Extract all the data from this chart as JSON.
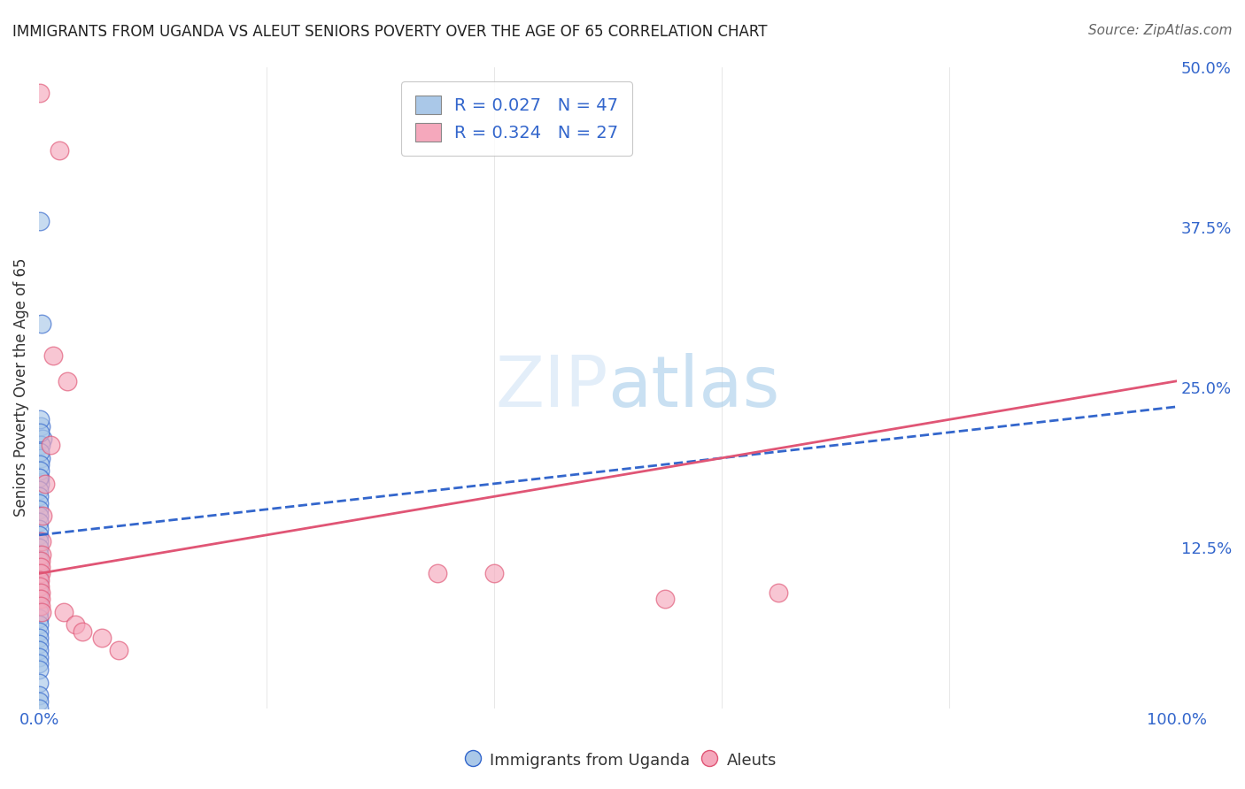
{
  "title": "IMMIGRANTS FROM UGANDA VS ALEUT SENIORS POVERTY OVER THE AGE OF 65 CORRELATION CHART",
  "source": "Source: ZipAtlas.com",
  "xlabel_blue": "Immigrants from Uganda",
  "xlabel_pink": "Aleuts",
  "ylabel": "Seniors Poverty Over the Age of 65",
  "xmin": 0.0,
  "xmax": 100.0,
  "ymin": 0.0,
  "ymax": 50.0,
  "yticks": [
    0.0,
    12.5,
    25.0,
    37.5,
    50.0
  ],
  "ytick_labels": [
    "",
    "12.5%",
    "25.0%",
    "37.5%",
    "50.0%"
  ],
  "xticks": [
    0.0,
    20.0,
    40.0,
    60.0,
    80.0,
    100.0
  ],
  "xtick_labels": [
    "0.0%",
    "",
    "",
    "",
    "",
    "100.0%"
  ],
  "R_blue": 0.027,
  "N_blue": 47,
  "R_pink": 0.324,
  "N_pink": 27,
  "blue_color": "#aac8e8",
  "pink_color": "#f5a8bc",
  "blue_line_color": "#3366cc",
  "pink_line_color": "#e05575",
  "blue_trendline": [
    0.0,
    100.0,
    13.5,
    23.5
  ],
  "pink_trendline": [
    0.0,
    100.0,
    10.5,
    25.5
  ],
  "blue_scatter": [
    [
      0.08,
      38.0
    ],
    [
      0.25,
      30.0
    ],
    [
      0.15,
      22.0
    ],
    [
      0.28,
      21.0
    ],
    [
      0.18,
      20.5
    ],
    [
      0.12,
      19.5
    ],
    [
      0.1,
      18.0
    ],
    [
      0.08,
      17.5
    ],
    [
      0.06,
      22.5
    ],
    [
      0.05,
      21.5
    ],
    [
      0.04,
      20.0
    ],
    [
      0.05,
      19.0
    ],
    [
      0.04,
      18.5
    ],
    [
      0.03,
      18.0
    ],
    [
      0.03,
      17.0
    ],
    [
      0.02,
      16.5
    ],
    [
      0.02,
      16.0
    ],
    [
      0.015,
      15.5
    ],
    [
      0.01,
      15.0
    ],
    [
      0.01,
      14.5
    ],
    [
      0.01,
      14.0
    ],
    [
      0.01,
      13.5
    ],
    [
      0.01,
      13.0
    ],
    [
      0.01,
      12.5
    ],
    [
      0.01,
      12.0
    ],
    [
      0.01,
      11.5
    ],
    [
      0.008,
      11.0
    ],
    [
      0.008,
      10.5
    ],
    [
      0.006,
      10.0
    ],
    [
      0.006,
      9.5
    ],
    [
      0.005,
      9.0
    ],
    [
      0.005,
      8.5
    ],
    [
      0.004,
      8.0
    ],
    [
      0.004,
      7.5
    ],
    [
      0.003,
      7.0
    ],
    [
      0.003,
      6.5
    ],
    [
      0.003,
      6.0
    ],
    [
      0.002,
      5.5
    ],
    [
      0.002,
      5.0
    ],
    [
      0.002,
      4.5
    ],
    [
      0.002,
      4.0
    ],
    [
      0.001,
      3.5
    ],
    [
      0.001,
      3.0
    ],
    [
      0.001,
      2.0
    ],
    [
      0.001,
      1.0
    ],
    [
      0.001,
      0.5
    ],
    [
      0.001,
      0.0
    ]
  ],
  "pink_scatter": [
    [
      0.06,
      48.0
    ],
    [
      1.8,
      43.5
    ],
    [
      1.2,
      27.5
    ],
    [
      2.5,
      25.5
    ],
    [
      1.0,
      20.5
    ],
    [
      0.5,
      17.5
    ],
    [
      0.3,
      15.0
    ],
    [
      0.25,
      13.0
    ],
    [
      0.2,
      12.0
    ],
    [
      0.18,
      11.5
    ],
    [
      0.15,
      11.0
    ],
    [
      0.12,
      10.5
    ],
    [
      0.1,
      10.0
    ],
    [
      0.1,
      9.5
    ],
    [
      0.12,
      9.0
    ],
    [
      0.15,
      8.5
    ],
    [
      0.18,
      8.0
    ],
    [
      0.25,
      7.5
    ],
    [
      2.2,
      7.5
    ],
    [
      3.2,
      6.5
    ],
    [
      3.8,
      6.0
    ],
    [
      5.5,
      5.5
    ],
    [
      35.0,
      10.5
    ],
    [
      40.0,
      10.5
    ],
    [
      55.0,
      8.5
    ],
    [
      65.0,
      9.0
    ],
    [
      7.0,
      4.5
    ]
  ]
}
